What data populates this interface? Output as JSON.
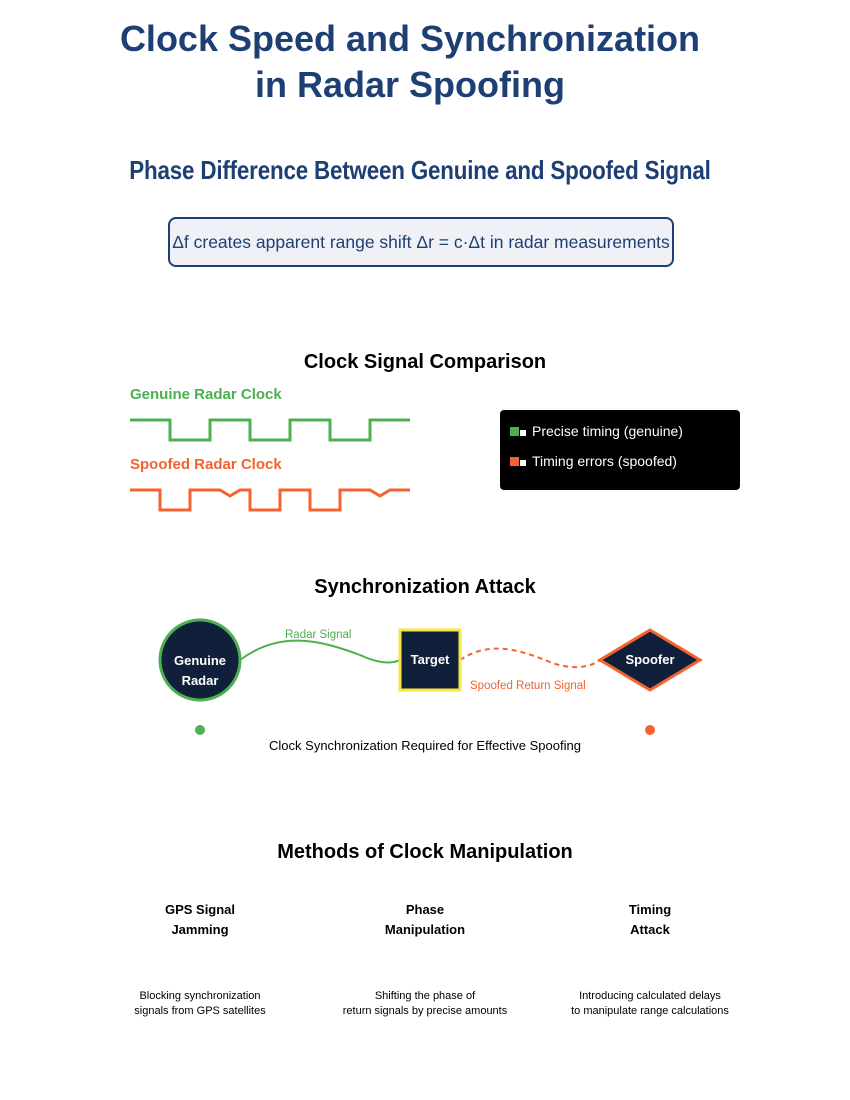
{
  "header": {
    "title_line1": "Clock Speed and Synchronization",
    "title_line2": "in Radar Spoofing",
    "subtitle": "Phase Difference Between Genuine and Spoofed Signal",
    "formula": "Δf creates apparent range shift Δr = c·Δt in radar measurements"
  },
  "clock_comparison": {
    "title": "Clock Signal Comparison",
    "genuine_label": "Genuine Radar Clock",
    "spoofed_label": "Spoofed Radar Clock",
    "legend": [
      {
        "label": "Precise timing (genuine)",
        "color": "#4caf50"
      },
      {
        "label": "Timing errors (spoofed)",
        "color": "#f4622e"
      }
    ]
  },
  "sync_attack": {
    "title": "Synchronization Attack",
    "radar_label_1": "Genuine",
    "radar_label_2": "Radar",
    "target_label": "Target",
    "spoofer_label": "Spoofer",
    "radar_signal": "Radar Signal",
    "spoofed_return": "Spoofed Return Signal",
    "caption": "Clock Synchronization Required for Effective Spoofing"
  },
  "methods": {
    "title": "Methods of Clock Manipulation",
    "items": [
      {
        "title_1": "GPS Signal",
        "title_2": "Jamming",
        "desc_1": "Blocking synchronization",
        "desc_2": "signals from GPS satellites"
      },
      {
        "title_1": "Phase",
        "title_2": "Manipulation",
        "desc_1": "Shifting the phase of",
        "desc_2": "return signals by precise amounts"
      },
      {
        "title_1": "Timing",
        "title_2": "Attack",
        "desc_1": "Introducing calculated delays",
        "desc_2": "to manipulate range calculations"
      }
    ]
  },
  "colors": {
    "navy": "#1e3f73",
    "genuine": "#4caf50",
    "spoofed": "#f4622e",
    "node_fill": "#10203a",
    "target_border": "#f5e642"
  }
}
